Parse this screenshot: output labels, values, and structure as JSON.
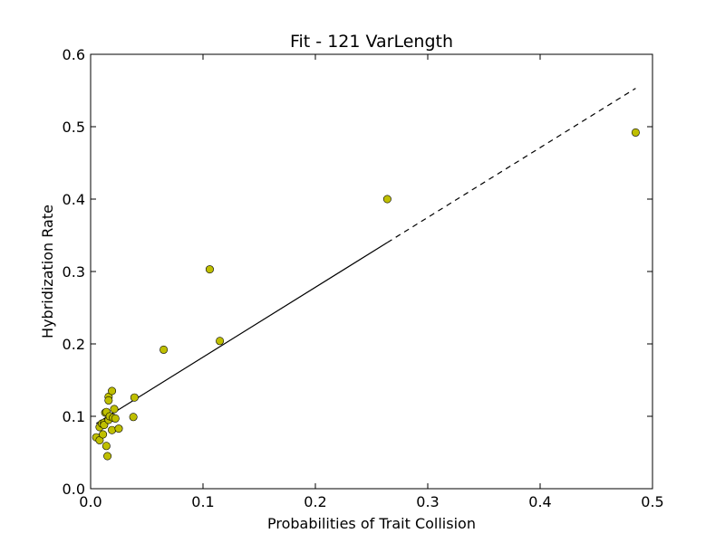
{
  "chart_data": {
    "type": "scatter",
    "title": "Fit - 121 VarLength",
    "xlabel": "Probabilities of Trait Collision",
    "ylabel": "Hybridization Rate",
    "xlim": [
      0.0,
      0.5
    ],
    "ylim": [
      0.0,
      0.6
    ],
    "xticks": [
      "0.0",
      "0.1",
      "0.2",
      "0.3",
      "0.4",
      "0.5"
    ],
    "yticks": [
      "0.0",
      "0.1",
      "0.2",
      "0.3",
      "0.4",
      "0.5",
      "0.6"
    ],
    "grid": false,
    "colors": {
      "marker": "#bfbf00",
      "marker_edge": "#000000",
      "fit_line": "#000000"
    },
    "series": [
      {
        "kind": "points",
        "x": [
          0.005,
          0.008,
          0.008,
          0.01,
          0.011,
          0.012,
          0.012,
          0.013,
          0.014,
          0.014,
          0.015,
          0.016,
          0.016,
          0.016,
          0.017,
          0.019,
          0.019,
          0.02,
          0.021,
          0.022,
          0.025,
          0.038,
          0.039,
          0.065,
          0.106,
          0.115,
          0.264,
          0.485
        ],
        "y": [
          0.071,
          0.085,
          0.067,
          0.09,
          0.075,
          0.091,
          0.088,
          0.105,
          0.106,
          0.059,
          0.045,
          0.127,
          0.122,
          0.095,
          0.1,
          0.135,
          0.081,
          0.098,
          0.11,
          0.097,
          0.083,
          0.099,
          0.126,
          0.192,
          0.303,
          0.204,
          0.4,
          0.492
        ]
      },
      {
        "kind": "fit-solid",
        "x": [
          0.005,
          0.264
        ],
        "y": [
          0.09,
          0.34
        ]
      },
      {
        "kind": "fit-dashed",
        "x": [
          0.264,
          0.485
        ],
        "y": [
          0.34,
          0.553
        ]
      }
    ]
  }
}
